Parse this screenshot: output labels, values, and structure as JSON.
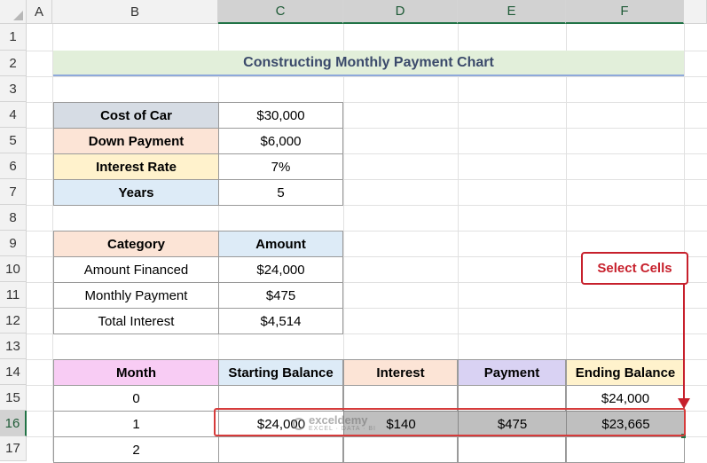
{
  "columns": [
    "A",
    "B",
    "C",
    "D",
    "E",
    "F"
  ],
  "rows": [
    "1",
    "2",
    "3",
    "4",
    "5",
    "6",
    "7",
    "8",
    "9",
    "10",
    "11",
    "12",
    "13",
    "14",
    "15",
    "16",
    "17"
  ],
  "title": "Constructing Monthly Payment Chart",
  "inputs": [
    {
      "label": "Cost of Car",
      "value": "$30,000",
      "color": "#d6dce4"
    },
    {
      "label": "Down Payment",
      "value": "$6,000",
      "color": "#fce4d6"
    },
    {
      "label": "Interest Rate",
      "value": "7%",
      "color": "#fff2cc"
    },
    {
      "label": "Years",
      "value": "5",
      "color": "#ddebf7"
    }
  ],
  "summary": {
    "headers": [
      "Category",
      "Amount"
    ],
    "header_colors": [
      "#fce4d6",
      "#ddebf7"
    ],
    "rows": [
      [
        "Amount Financed",
        "$24,000"
      ],
      [
        "Monthly Payment",
        "$475"
      ],
      [
        "Total Interest",
        "$4,514"
      ]
    ]
  },
  "schedule": {
    "headers": [
      "Month",
      "Starting Balance",
      "Interest",
      "Payment",
      "Ending Balance"
    ],
    "header_colors": [
      "#f8ccf4",
      "#ddebf7",
      "#fce4d6",
      "#d9d2f3",
      "#fff2cc"
    ],
    "rows": [
      [
        "0",
        "",
        "",
        "",
        "$24,000"
      ],
      [
        "1",
        "$24,000",
        "$140",
        "$475",
        "$23,665"
      ],
      [
        "2",
        "",
        "",
        "",
        ""
      ]
    ]
  },
  "callout": "Select Cells",
  "watermark": {
    "name": "exceldemy",
    "tagline": "EXCEL · DATA · BI"
  }
}
